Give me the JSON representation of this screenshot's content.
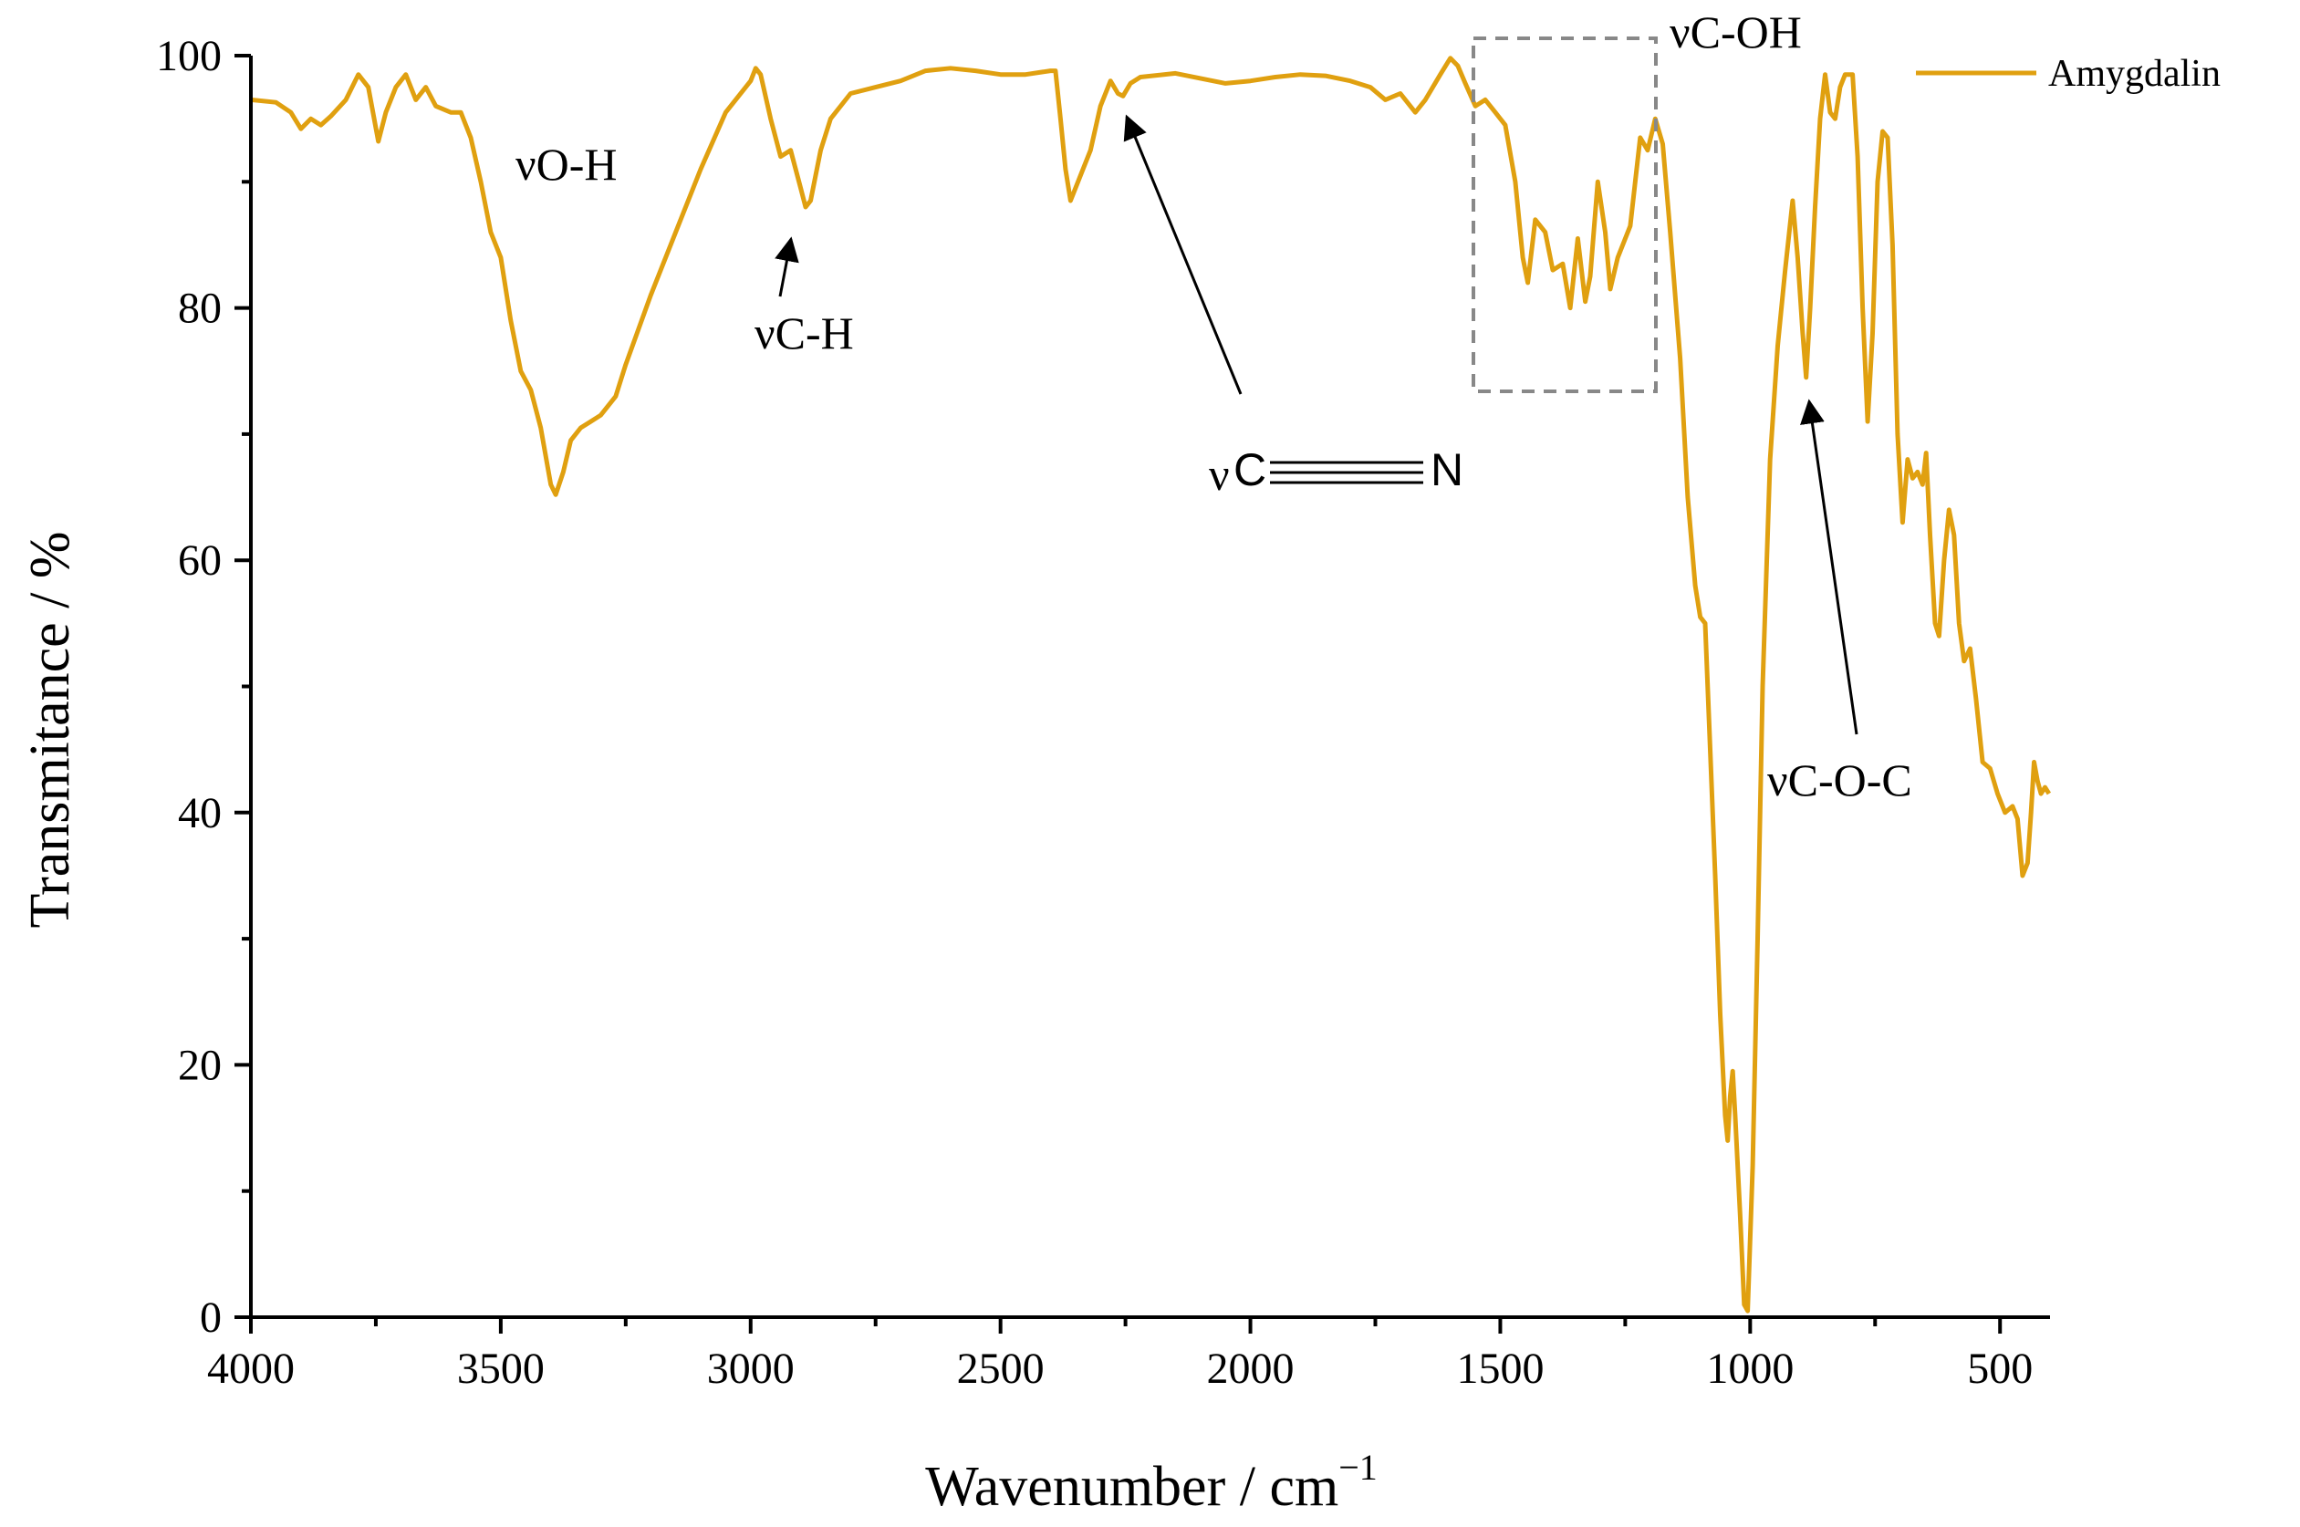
{
  "chart_data": {
    "type": "line",
    "xlabel": "Wavenumber /  cm",
    "xlabel_sup": "−1",
    "ylabel": "Transmitance / %",
    "xlim": [
      4000,
      400
    ],
    "ylim": [
      0,
      100
    ],
    "x_reversed": true,
    "xticks": [
      4000,
      3500,
      3000,
      2500,
      2000,
      1500,
      1000,
      500
    ],
    "yticks": [
      0,
      20,
      40,
      60,
      80,
      100
    ],
    "legend": {
      "placement": "top-right",
      "entries": [
        "Amygdalin"
      ]
    },
    "grid": false,
    "colors": {
      "series": "#E0A010",
      "axis": "#000000",
      "box": "#888888"
    },
    "series": [
      {
        "name": "Amygdalin",
        "points": [
          [
            4000,
            96.5
          ],
          [
            3950,
            96.3
          ],
          [
            3920,
            95.5
          ],
          [
            3900,
            94.2
          ],
          [
            3880,
            95.0
          ],
          [
            3860,
            94.5
          ],
          [
            3840,
            95.2
          ],
          [
            3810,
            96.5
          ],
          [
            3785,
            98.5
          ],
          [
            3765,
            97.5
          ],
          [
            3745,
            93.2
          ],
          [
            3730,
            95.5
          ],
          [
            3710,
            97.5
          ],
          [
            3690,
            98.5
          ],
          [
            3670,
            96.5
          ],
          [
            3650,
            97.5
          ],
          [
            3630,
            96.0
          ],
          [
            3600,
            95.5
          ],
          [
            3580,
            95.5
          ],
          [
            3560,
            93.5
          ],
          [
            3540,
            90.0
          ],
          [
            3520,
            86.0
          ],
          [
            3500,
            84.0
          ],
          [
            3480,
            79.0
          ],
          [
            3460,
            75.0
          ],
          [
            3440,
            73.5
          ],
          [
            3420,
            70.5
          ],
          [
            3400,
            66.0
          ],
          [
            3390,
            65.2
          ],
          [
            3375,
            67.0
          ],
          [
            3360,
            69.5
          ],
          [
            3340,
            70.5
          ],
          [
            3320,
            71.0
          ],
          [
            3300,
            71.5
          ],
          [
            3270,
            73.0
          ],
          [
            3250,
            75.5
          ],
          [
            3200,
            81.0
          ],
          [
            3150,
            86.0
          ],
          [
            3100,
            91.0
          ],
          [
            3050,
            95.5
          ],
          [
            3000,
            98.0
          ],
          [
            2990,
            99.0
          ],
          [
            2980,
            98.5
          ],
          [
            2960,
            95.0
          ],
          [
            2940,
            92.0
          ],
          [
            2920,
            92.5
          ],
          [
            2900,
            89.5
          ],
          [
            2890,
            88.0
          ],
          [
            2880,
            88.5
          ],
          [
            2860,
            92.5
          ],
          [
            2840,
            95.0
          ],
          [
            2800,
            97.0
          ],
          [
            2750,
            97.5
          ],
          [
            2700,
            98.0
          ],
          [
            2650,
            98.8
          ],
          [
            2600,
            99.0
          ],
          [
            2550,
            98.8
          ],
          [
            2500,
            98.5
          ],
          [
            2450,
            98.5
          ],
          [
            2400,
            98.8
          ],
          [
            2390,
            98.8
          ],
          [
            2380,
            95.0
          ],
          [
            2370,
            91.0
          ],
          [
            2360,
            88.5
          ],
          [
            2340,
            90.5
          ],
          [
            2320,
            92.5
          ],
          [
            2300,
            96.0
          ],
          [
            2280,
            98.0
          ],
          [
            2265,
            97.0
          ],
          [
            2255,
            96.8
          ],
          [
            2240,
            97.8
          ],
          [
            2220,
            98.3
          ],
          [
            2150,
            98.6
          ],
          [
            2100,
            98.2
          ],
          [
            2050,
            97.8
          ],
          [
            2000,
            98.0
          ],
          [
            1950,
            98.3
          ],
          [
            1900,
            98.5
          ],
          [
            1850,
            98.4
          ],
          [
            1800,
            98.0
          ],
          [
            1760,
            97.5
          ],
          [
            1730,
            96.5
          ],
          [
            1700,
            97.0
          ],
          [
            1670,
            95.5
          ],
          [
            1650,
            96.5
          ],
          [
            1620,
            98.5
          ],
          [
            1600,
            99.8
          ],
          [
            1585,
            99.2
          ],
          [
            1570,
            97.8
          ],
          [
            1550,
            96.0
          ],
          [
            1530,
            96.5
          ],
          [
            1510,
            95.5
          ],
          [
            1490,
            94.5
          ],
          [
            1470,
            90.0
          ],
          [
            1455,
            84.0
          ],
          [
            1445,
            82.0
          ],
          [
            1430,
            87.0
          ],
          [
            1410,
            86.0
          ],
          [
            1395,
            83.0
          ],
          [
            1375,
            83.5
          ],
          [
            1360,
            80.0
          ],
          [
            1345,
            85.5
          ],
          [
            1330,
            80.5
          ],
          [
            1320,
            82.5
          ],
          [
            1305,
            90.0
          ],
          [
            1290,
            86.0
          ],
          [
            1280,
            81.5
          ],
          [
            1265,
            84.0
          ],
          [
            1240,
            86.5
          ],
          [
            1220,
            93.5
          ],
          [
            1205,
            92.5
          ],
          [
            1190,
            95.0
          ],
          [
            1175,
            93.0
          ],
          [
            1160,
            86.0
          ],
          [
            1140,
            76.0
          ],
          [
            1125,
            65.0
          ],
          [
            1110,
            58.0
          ],
          [
            1100,
            55.5
          ],
          [
            1090,
            55.0
          ],
          [
            1080,
            45.0
          ],
          [
            1070,
            35.0
          ],
          [
            1060,
            24.0
          ],
          [
            1050,
            16.0
          ],
          [
            1045,
            14.0
          ],
          [
            1040,
            17.5
          ],
          [
            1035,
            19.5
          ],
          [
            1030,
            16.0
          ],
          [
            1020,
            8.0
          ],
          [
            1012,
            1.0
          ],
          [
            1005,
            0.5
          ],
          [
            995,
            12.0
          ],
          [
            985,
            30.0
          ],
          [
            975,
            50.0
          ],
          [
            960,
            68.0
          ],
          [
            945,
            77.0
          ],
          [
            930,
            83.0
          ],
          [
            915,
            88.5
          ],
          [
            905,
            84.0
          ],
          [
            895,
            78.0
          ],
          [
            888,
            74.5
          ],
          [
            880,
            80.0
          ],
          [
            870,
            88.0
          ],
          [
            860,
            95.0
          ],
          [
            850,
            98.5
          ],
          [
            840,
            95.5
          ],
          [
            830,
            95.0
          ],
          [
            820,
            97.5
          ],
          [
            810,
            98.5
          ],
          [
            795,
            98.5
          ],
          [
            785,
            92.0
          ],
          [
            775,
            80.0
          ],
          [
            765,
            71.0
          ],
          [
            755,
            78.0
          ],
          [
            745,
            90.0
          ],
          [
            735,
            94.0
          ],
          [
            725,
            93.5
          ],
          [
            715,
            85.0
          ],
          [
            705,
            70.0
          ],
          [
            695,
            63.0
          ],
          [
            685,
            68.0
          ],
          [
            675,
            66.5
          ],
          [
            665,
            67.0
          ],
          [
            655,
            66.0
          ],
          [
            648,
            68.5
          ],
          [
            640,
            62.0
          ],
          [
            630,
            55.0
          ],
          [
            622,
            54.0
          ],
          [
            612,
            60.0
          ],
          [
            602,
            64.0
          ],
          [
            592,
            62.0
          ],
          [
            582,
            55.0
          ],
          [
            572,
            52.0
          ],
          [
            560,
            53.0
          ],
          [
            548,
            49.0
          ],
          [
            535,
            44.0
          ],
          [
            520,
            43.5
          ],
          [
            505,
            41.5
          ],
          [
            490,
            40.0
          ],
          [
            475,
            40.5
          ],
          [
            465,
            39.5
          ],
          [
            455,
            35.0
          ],
          [
            445,
            36.0
          ],
          [
            438,
            40.0
          ],
          [
            432,
            44.0
          ],
          [
            425,
            42.5
          ],
          [
            418,
            41.5
          ],
          [
            410,
            42.0
          ],
          [
            402,
            41.5
          ]
        ]
      }
    ],
    "annotations": [
      {
        "text": "νO-H"
      },
      {
        "text": "νC-H"
      },
      {
        "text": "νC-OH"
      },
      {
        "text": "νC-O-C"
      },
      {
        "text": "ν",
        "symbol": [
          "C",
          "N"
        ]
      }
    ]
  }
}
